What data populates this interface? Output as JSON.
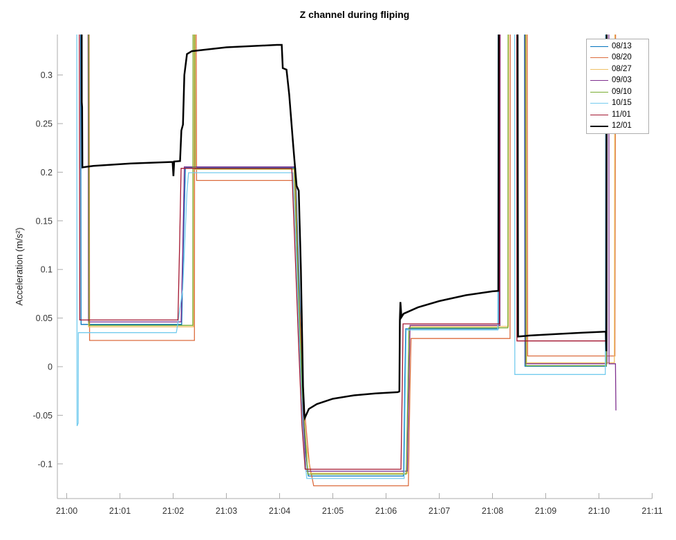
{
  "figure": {
    "background": "#ffffff"
  },
  "chart_data": {
    "type": "line",
    "title": "Z channel during fliping",
    "xlabel": "",
    "ylabel": "Acceleration (m/s²)",
    "x_unit": "time of day (HH:MM)",
    "x_tick_labels": [
      "21:00",
      "21:01",
      "21:02",
      "21:03",
      "21:04",
      "21:05",
      "21:06",
      "21:07",
      "21:08",
      "21:09",
      "21:10",
      "21:11"
    ],
    "x_tick_minutes": [
      0,
      1,
      2,
      3,
      4,
      5,
      6,
      7,
      8,
      9,
      10,
      11
    ],
    "y_ticks": [
      -0.1,
      -0.05,
      0,
      0.05,
      0.1,
      0.15,
      0.2,
      0.25,
      0.3
    ],
    "y_tick_labels": [
      "-0.1",
      "-0.05",
      "0",
      "0.05",
      "0.1",
      "0.15",
      "0.2",
      "0.25",
      "0.3"
    ],
    "xlim_minutes": [
      -0.175,
      11.0
    ],
    "ylim": [
      -0.136,
      0.342
    ],
    "grid": false,
    "axis_color": "#ababab",
    "tick_label_color": "#333333",
    "legend": {
      "position": "top-right",
      "border_color": "#adadad",
      "background": "#ffffff"
    },
    "series": [
      {
        "name": "08/13",
        "color": "#0072BD",
        "line_width": 1.3,
        "points": [
          [
            0.26,
            0.42
          ],
          [
            0.27,
            0.0435
          ],
          [
            2.16,
            0.0435
          ],
          [
            2.19,
            0.12
          ],
          [
            2.23,
            0.2045
          ],
          [
            4.3,
            0.2045
          ],
          [
            4.35,
            0.12
          ],
          [
            4.42,
            0.0
          ],
          [
            4.48,
            -0.08
          ],
          [
            4.54,
            -0.1125
          ],
          [
            6.33,
            -0.1125
          ],
          [
            6.35,
            -0.02
          ],
          [
            6.37,
            0.039
          ],
          [
            8.11,
            0.039
          ],
          [
            8.115,
            0.42
          ],
          [
            8.6,
            0.42
          ],
          [
            8.61,
            0.0005
          ],
          [
            10.14,
            0.0005
          ],
          [
            10.15,
            0.42
          ]
        ]
      },
      {
        "name": "08/20",
        "color": "#DC6B3C",
        "line_width": 1.3,
        "points": [
          [
            0.42,
            0.42
          ],
          [
            0.43,
            0.027
          ],
          [
            2.4,
            0.027
          ],
          [
            2.405,
            0.42
          ],
          [
            2.43,
            0.42
          ],
          [
            2.44,
            0.1915
          ],
          [
            4.3,
            0.1915
          ],
          [
            4.36,
            0.08
          ],
          [
            4.46,
            -0.04
          ],
          [
            4.56,
            -0.1
          ],
          [
            4.64,
            -0.1225
          ],
          [
            6.42,
            -0.1225
          ],
          [
            6.45,
            -0.02
          ],
          [
            6.47,
            0.029
          ],
          [
            8.33,
            0.029
          ],
          [
            8.335,
            0.42
          ],
          [
            8.65,
            0.42
          ],
          [
            8.66,
            0.011
          ],
          [
            10.3,
            0.011
          ],
          [
            10.315,
            0.42
          ]
        ]
      },
      {
        "name": "08/27",
        "color": "#EFC064",
        "line_width": 1.3,
        "points": [
          [
            0.4,
            0.42
          ],
          [
            0.41,
            0.041
          ],
          [
            2.38,
            0.041
          ],
          [
            2.385,
            0.42
          ],
          [
            2.41,
            0.42
          ],
          [
            2.42,
            0.203
          ],
          [
            4.27,
            0.203
          ],
          [
            4.33,
            0.1
          ],
          [
            4.41,
            -0.02
          ],
          [
            4.5,
            -0.08
          ],
          [
            4.58,
            -0.1095
          ],
          [
            6.4,
            -0.1095
          ],
          [
            6.43,
            -0.02
          ],
          [
            6.45,
            0.0415
          ],
          [
            8.3,
            0.0415
          ],
          [
            8.305,
            0.42
          ],
          [
            8.63,
            0.42
          ],
          [
            8.64,
            0.004
          ],
          [
            10.29,
            0.004
          ],
          [
            10.3,
            0.42
          ]
        ]
      },
      {
        "name": "09/03",
        "color": "#7E2F8E",
        "line_width": 1.3,
        "points": [
          [
            0.4,
            0.42
          ],
          [
            0.41,
            0.046
          ],
          [
            2.15,
            0.046
          ],
          [
            2.18,
            0.12
          ],
          [
            2.21,
            0.2055
          ],
          [
            4.28,
            0.2055
          ],
          [
            4.34,
            0.1
          ],
          [
            4.42,
            -0.03
          ],
          [
            4.5,
            -0.1075
          ],
          [
            6.4,
            -0.1075
          ],
          [
            6.43,
            -0.02
          ],
          [
            6.45,
            0.0425
          ],
          [
            8.14,
            0.0425
          ],
          [
            8.145,
            0.42
          ],
          [
            8.61,
            0.42
          ],
          [
            8.62,
            0.003
          ],
          [
            10.15,
            0.003
          ],
          [
            10.155,
            0.42
          ],
          [
            10.185,
            0.42
          ],
          [
            10.19,
            0.003
          ],
          [
            10.31,
            0.003
          ],
          [
            10.32,
            -0.045
          ]
        ]
      },
      {
        "name": "09/10",
        "color": "#77AC30",
        "line_width": 1.3,
        "points": [
          [
            0.41,
            0.42
          ],
          [
            0.42,
            0.0425
          ],
          [
            2.37,
            0.0425
          ],
          [
            2.375,
            0.42
          ],
          [
            2.4,
            0.42
          ],
          [
            2.41,
            0.2035
          ],
          [
            4.28,
            0.2035
          ],
          [
            4.34,
            0.1
          ],
          [
            4.42,
            -0.02
          ],
          [
            4.53,
            -0.1105
          ],
          [
            6.38,
            -0.1105
          ],
          [
            6.41,
            -0.02
          ],
          [
            6.43,
            0.04
          ],
          [
            8.29,
            0.04
          ],
          [
            8.295,
            0.42
          ],
          [
            8.62,
            0.42
          ],
          [
            8.63,
            0.001
          ],
          [
            10.14,
            0.001
          ],
          [
            10.15,
            0.42
          ]
        ]
      },
      {
        "name": "10/15",
        "color": "#73CBEE",
        "line_width": 1.3,
        "points": [
          [
            0.19,
            0.42
          ],
          [
            0.195,
            -0.061
          ],
          [
            0.215,
            -0.058
          ],
          [
            0.22,
            0.035
          ],
          [
            2.06,
            0.035
          ],
          [
            2.08,
            0.042
          ],
          [
            2.18,
            0.08
          ],
          [
            2.22,
            0.13
          ],
          [
            2.26,
            0.18
          ],
          [
            2.29,
            0.1995
          ],
          [
            4.25,
            0.1995
          ],
          [
            4.31,
            0.12
          ],
          [
            4.39,
            0.0
          ],
          [
            4.45,
            -0.08
          ],
          [
            4.51,
            -0.115
          ],
          [
            6.34,
            -0.115
          ],
          [
            6.36,
            -0.03
          ],
          [
            6.38,
            0.0378
          ],
          [
            8.1,
            0.0378
          ],
          [
            8.105,
            0.42
          ],
          [
            8.415,
            0.42
          ],
          [
            8.42,
            -0.008
          ],
          [
            10.12,
            -0.008
          ],
          [
            10.125,
            0.42
          ]
        ]
      },
      {
        "name": "11/01",
        "color": "#A2142F",
        "line_width": 1.3,
        "points": [
          [
            0.235,
            0.42
          ],
          [
            0.245,
            0.048
          ],
          [
            2.09,
            0.048
          ],
          [
            2.12,
            0.12
          ],
          [
            2.15,
            0.204
          ],
          [
            4.23,
            0.204
          ],
          [
            4.29,
            0.12
          ],
          [
            4.36,
            0.02
          ],
          [
            4.42,
            -0.06
          ],
          [
            4.48,
            -0.1055
          ],
          [
            6.28,
            -0.1055
          ],
          [
            6.305,
            -0.02
          ],
          [
            6.32,
            0.044
          ],
          [
            8.13,
            0.044
          ],
          [
            8.135,
            0.42
          ],
          [
            8.455,
            0.42
          ],
          [
            8.46,
            0.0265
          ],
          [
            10.13,
            0.0265
          ],
          [
            10.14,
            0.42
          ]
        ]
      },
      {
        "name": "12/01",
        "color": "#000000",
        "line_width": 2.5,
        "points": [
          [
            0.28,
            0.42
          ],
          [
            0.283,
            0.272
          ],
          [
            0.29,
            0.267
          ],
          [
            0.295,
            0.205
          ],
          [
            0.5,
            0.2065
          ],
          [
            1.2,
            0.209
          ],
          [
            1.95,
            0.2105
          ],
          [
            1.99,
            0.2105
          ],
          [
            2.005,
            0.196
          ],
          [
            2.02,
            0.211
          ],
          [
            2.13,
            0.2115
          ],
          [
            2.155,
            0.243
          ],
          [
            2.185,
            0.249
          ],
          [
            2.21,
            0.3
          ],
          [
            2.26,
            0.3215
          ],
          [
            2.35,
            0.3245
          ],
          [
            3.0,
            0.3285
          ],
          [
            3.95,
            0.331
          ],
          [
            4.04,
            0.331
          ],
          [
            4.06,
            0.307
          ],
          [
            4.13,
            0.3055
          ],
          [
            4.18,
            0.28
          ],
          [
            4.26,
            0.225
          ],
          [
            4.32,
            0.186
          ],
          [
            4.36,
            0.181
          ],
          [
            4.4,
            0.1
          ],
          [
            4.44,
            -0.02
          ],
          [
            4.465,
            -0.049
          ],
          [
            4.475,
            -0.0525
          ],
          [
            4.55,
            -0.0435
          ],
          [
            4.7,
            -0.0385
          ],
          [
            5.0,
            -0.033
          ],
          [
            5.4,
            -0.0295
          ],
          [
            5.8,
            -0.0275
          ],
          [
            6.22,
            -0.0262
          ],
          [
            6.25,
            -0.0255
          ],
          [
            6.26,
            0.048
          ],
          [
            6.27,
            0.0665
          ],
          [
            6.29,
            0.051
          ],
          [
            6.33,
            0.0545
          ],
          [
            6.6,
            0.061
          ],
          [
            7.0,
            0.0675
          ],
          [
            7.5,
            0.0735
          ],
          [
            8.0,
            0.0775
          ],
          [
            8.11,
            0.078
          ],
          [
            8.12,
            0.42
          ],
          [
            8.47,
            0.42
          ],
          [
            8.48,
            0.031
          ],
          [
            8.7,
            0.032
          ],
          [
            9.2,
            0.0335
          ],
          [
            9.7,
            0.035
          ],
          [
            10.13,
            0.036
          ],
          [
            10.14,
            0.016
          ],
          [
            10.145,
            0.42
          ]
        ]
      }
    ]
  }
}
